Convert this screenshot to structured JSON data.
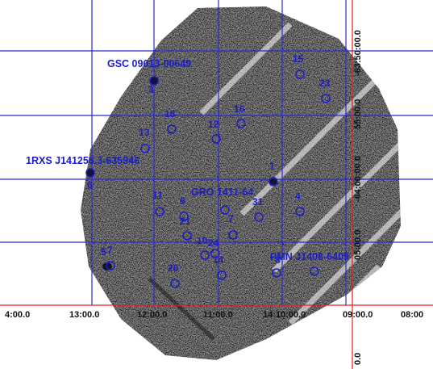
{
  "colors": {
    "grid": "#2a2ad0",
    "axis": "#e02020",
    "label": "#1c1cc8",
    "source_fill": "#141432"
  },
  "named_sources": [
    {
      "id": "gsc",
      "label": "GSC 09013-00649"
    },
    {
      "id": "rxs",
      "label": "1RXS J141255.3-635946"
    },
    {
      "id": "gro",
      "label": "GRO 1411-64"
    },
    {
      "id": "pmn",
      "label": "PMN J1408-6409"
    }
  ],
  "numbered_sources": [
    "1",
    "3",
    "4",
    "6",
    "7",
    "9",
    "10",
    "11",
    "12",
    "13",
    "14",
    "15",
    "16",
    "18",
    "21",
    "23",
    "24",
    "26",
    "31",
    "5",
    "7",
    "8"
  ],
  "ra_ticks": [
    "4:00.0",
    "13:00.0",
    "12:00.0",
    "11:00.0",
    "14:10:00.0",
    "09:00.0",
    "08:00"
  ],
  "dec_ticks": [
    "-63:50:00.0",
    "55:00.0",
    "-64:00:00.0",
    "05:00.0",
    "0.0"
  ]
}
